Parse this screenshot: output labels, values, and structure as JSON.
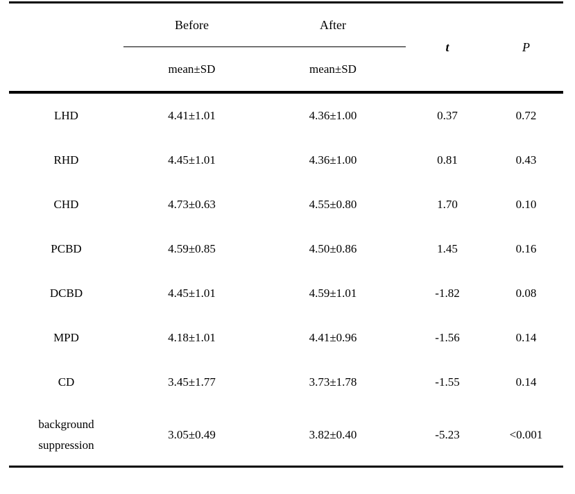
{
  "table": {
    "group_headers": {
      "before": "Before",
      "after": "After"
    },
    "sub_headers": {
      "before": "mean±SD",
      "after": "mean±SD"
    },
    "stat_headers": {
      "t": "t",
      "p": "P"
    },
    "rows": [
      {
        "label": "LHD",
        "before": "4.41±1.01",
        "after": "4.36±1.00",
        "t": "0.37",
        "p": "0.72"
      },
      {
        "label": "RHD",
        "before": "4.45±1.01",
        "after": "4.36±1.00",
        "t": "0.81",
        "p": "0.43"
      },
      {
        "label": "CHD",
        "before": "4.73±0.63",
        "after": "4.55±0.80",
        "t": "1.70",
        "p": "0.10"
      },
      {
        "label": "PCBD",
        "before": "4.59±0.85",
        "after": "4.50±0.86",
        "t": "1.45",
        "p": "0.16"
      },
      {
        "label": "DCBD",
        "before": "4.45±1.01",
        "after": "4.59±1.01",
        "t": "-1.82",
        "p": "0.08"
      },
      {
        "label": "MPD",
        "before": "4.18±1.01",
        "after": "4.41±0.96",
        "t": "-1.56",
        "p": "0.14"
      },
      {
        "label": "CD",
        "before": "3.45±1.77",
        "after": "3.73±1.78",
        "t": "-1.55",
        "p": "0.14"
      },
      {
        "label": "background suppression",
        "before": "3.05±0.49",
        "after": "3.82±0.40",
        "t": "-5.23",
        "p": "<0.001"
      }
    ],
    "colors": {
      "text": "#000000",
      "rule": "#000000",
      "background": "#ffffff"
    }
  }
}
